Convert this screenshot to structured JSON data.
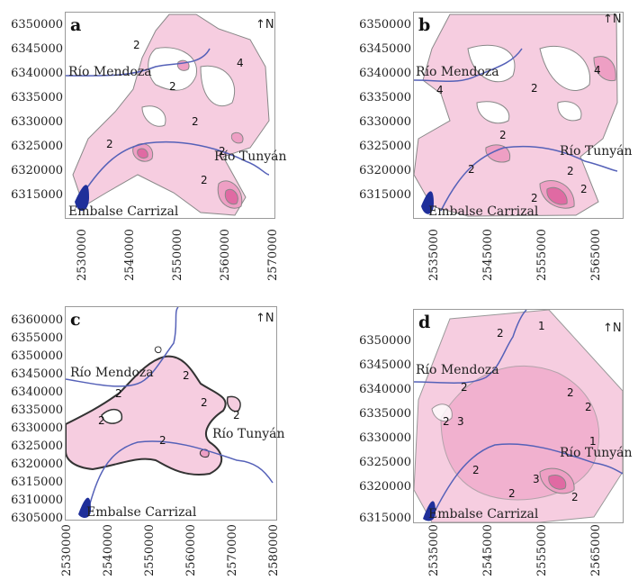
{
  "north_label": "N",
  "panels": [
    {
      "letter": "a",
      "x_ticks": [
        "2530000",
        "2540000",
        "2550000",
        "2560000",
        "2570000"
      ],
      "y_ticks": [
        "6350000",
        "6345000",
        "6340000",
        "6335000",
        "6330000",
        "6325000",
        "6320000",
        "6315000"
      ],
      "river1": "Río Mendoza",
      "river2": "Río Tunyán",
      "reservoir": "Embalse Carrizal"
    },
    {
      "letter": "b",
      "x_ticks": [
        "2535000",
        "2545000",
        "2555000",
        "2565000"
      ],
      "y_ticks": [
        "6350000",
        "6345000",
        "6340000",
        "6335000",
        "6330000",
        "6325000",
        "6320000",
        "6315000"
      ],
      "river1": "Río Mendoza",
      "river2": "Río Tunyán",
      "reservoir": "Embalse Carrizal"
    },
    {
      "letter": "c",
      "x_ticks": [
        "2530000",
        "2540000",
        "2550000",
        "2560000",
        "2570000",
        "2580000"
      ],
      "y_ticks": [
        "6360000",
        "6355000",
        "6350000",
        "6345000",
        "6340000",
        "6335000",
        "6330000",
        "6325000",
        "6320000",
        "6315000",
        "6310000",
        "6305000"
      ],
      "river1": "Río Mendoza",
      "river2": "Río Tunyán",
      "reservoir": "Embalse Carrizal"
    },
    {
      "letter": "d",
      "x_ticks": [
        "2535000",
        "2545000",
        "2555000",
        "2565000"
      ],
      "y_ticks": [
        "6350000",
        "6345000",
        "6340000",
        "6335000",
        "6330000",
        "6325000",
        "6320000",
        "6315000"
      ],
      "river1": "Río Mendoza",
      "river2": "Río Tunyán",
      "reservoir": "Embalse Carrizal"
    }
  ],
  "contour_labels": [
    "1",
    "2",
    "3",
    "4"
  ],
  "colors": {
    "pink_light": "#f6cde0",
    "pink_mid": "#ee9fc4",
    "pink_dark": "#e06aa3",
    "river": "#5561b8",
    "reservoir": "#1f2f9a",
    "contour": "#777777"
  }
}
